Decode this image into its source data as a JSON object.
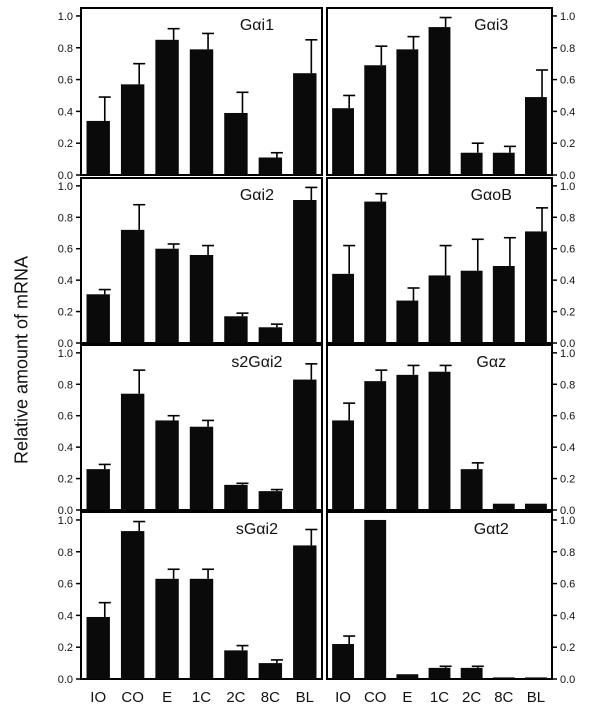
{
  "chart_data": {
    "type": "bar",
    "ylabel": "Relative amount of mRNA",
    "categories": [
      "IO",
      "CO",
      "E",
      "1C",
      "2C",
      "8C",
      "BL"
    ],
    "ylim": [
      0,
      1.05
    ],
    "yticks": [
      "0.0",
      "0.2",
      "0.4",
      "0.6",
      "0.8",
      "1.0"
    ],
    "error_bars": "upper",
    "panels": [
      {
        "title": "Gαi1",
        "values": [
          0.34,
          0.57,
          0.85,
          0.79,
          0.39,
          0.11,
          0.64
        ],
        "errors": [
          0.15,
          0.13,
          0.07,
          0.1,
          0.13,
          0.03,
          0.21
        ]
      },
      {
        "title": "Gαi3",
        "values": [
          0.42,
          0.69,
          0.79,
          0.93,
          0.14,
          0.14,
          0.49
        ],
        "errors": [
          0.08,
          0.12,
          0.08,
          0.06,
          0.06,
          0.04,
          0.17
        ]
      },
      {
        "title": "Gαi2",
        "values": [
          0.31,
          0.72,
          0.6,
          0.56,
          0.17,
          0.1,
          0.91
        ],
        "errors": [
          0.03,
          0.16,
          0.03,
          0.06,
          0.02,
          0.02,
          0.08
        ]
      },
      {
        "title": "GαoB",
        "values": [
          0.44,
          0.9,
          0.27,
          0.43,
          0.46,
          0.49,
          0.71
        ],
        "errors": [
          0.18,
          0.05,
          0.08,
          0.19,
          0.2,
          0.18,
          0.15
        ]
      },
      {
        "title": "s2Gαi2",
        "values": [
          0.26,
          0.74,
          0.57,
          0.53,
          0.16,
          0.12,
          0.83
        ],
        "errors": [
          0.03,
          0.15,
          0.03,
          0.04,
          0.01,
          0.01,
          0.1
        ]
      },
      {
        "title": "Gαz",
        "values": [
          0.57,
          0.82,
          0.86,
          0.88,
          0.26,
          0.04,
          0.04
        ],
        "errors": [
          0.11,
          0.07,
          0.06,
          0.04,
          0.04,
          0.0,
          0.0
        ]
      },
      {
        "title": "sGαi2",
        "values": [
          0.39,
          0.93,
          0.63,
          0.63,
          0.18,
          0.1,
          0.84
        ],
        "errors": [
          0.09,
          0.06,
          0.06,
          0.06,
          0.03,
          0.02,
          0.1
        ]
      },
      {
        "title": "Gαt2",
        "values": [
          0.22,
          1.0,
          0.03,
          0.07,
          0.07,
          0.01,
          0.01
        ],
        "errors": [
          0.05,
          0.0,
          0.0,
          0.01,
          0.01,
          0.0,
          0.0
        ]
      }
    ]
  }
}
